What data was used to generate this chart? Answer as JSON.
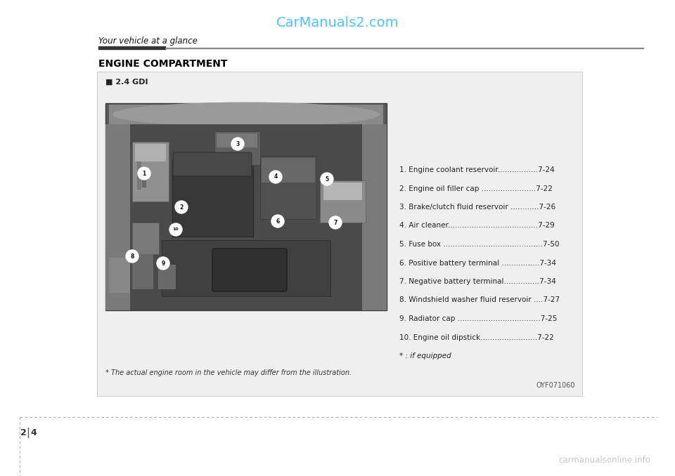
{
  "page_title": "CarManuals2.com",
  "page_title_color": "#4FC3F7",
  "section_header": "Your vehicle at a glance",
  "main_title": "ENGINE COMPARTMENT",
  "sub_title": "■ 2.4 GDI",
  "image_code": "OYF071060",
  "footnote": "* The actual engine room in the vehicle may differ from the illustration.",
  "items": [
    "1. Engine coolant reservoir.................7-24",
    "2. Engine oil filler cap .......................7-22",
    "3. Brake/clutch fluid reservoir ............7-26",
    "4. Air cleaner......................................7-29",
    "5. Fuse box ..........................................7-50",
    "6. Positive battery terminal ................7-34",
    "7. Negative battery terminal...............7-34",
    "8. Windshield washer fluid reservoir ....7-27",
    "9. Radiator cap ...................................7-25",
    "10. Engine oil dipstick........................7-22",
    "* : if equipped"
  ],
  "page_number_left": "2",
  "page_number_right": "4",
  "bg_color": "#ffffff",
  "box_bg_color": "#efefef",
  "watermark_text": "carmanualsonline.info",
  "watermark_color": "#c8c8c8",
  "dashed_line_color": "#aaaaaa"
}
